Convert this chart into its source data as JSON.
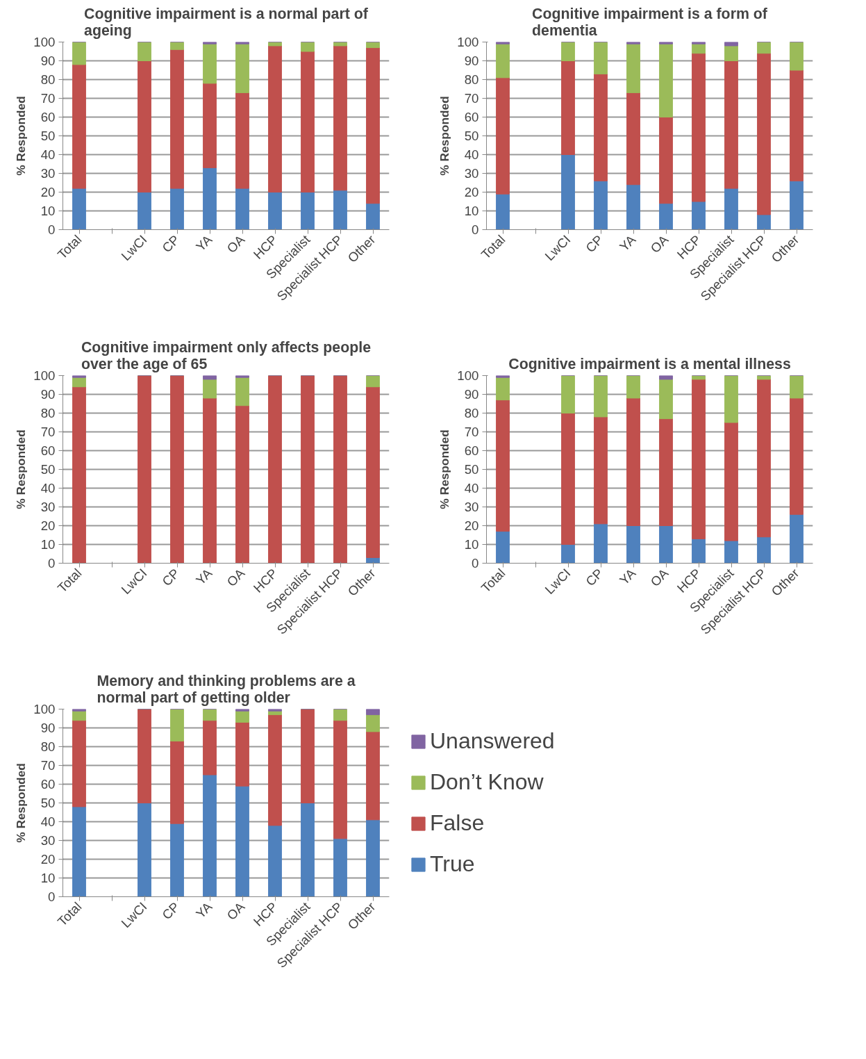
{
  "chart_data": [
    {
      "type": "bar",
      "stacked": true,
      "title": "Cognitive impairment is a normal part of ageing",
      "ylabel": "% Responded",
      "categories": [
        "Total",
        null,
        "LwCI",
        "CP",
        "YA",
        "OA",
        "HCP",
        "Specialist",
        "Specialist HCP",
        "Other"
      ],
      "ylim": [
        0,
        100
      ],
      "yticks": [
        0,
        10,
        20,
        30,
        40,
        50,
        60,
        70,
        80,
        90,
        100
      ],
      "grid": "y",
      "legend": false,
      "series": [
        {
          "color": "#4f81bd",
          "values": [
            22,
            null,
            20,
            22,
            33,
            22,
            20,
            20,
            21,
            14
          ]
        },
        {
          "color": "#c0504d",
          "values": [
            66,
            null,
            70,
            74,
            45,
            51,
            78,
            75,
            77,
            83
          ]
        },
        {
          "color": "#9bbb59",
          "values": [
            12,
            null,
            10,
            4,
            21,
            26,
            2,
            5,
            2,
            3
          ]
        },
        {
          "color": "#8064a2",
          "values": [
            0,
            null,
            0,
            0,
            1,
            1,
            0,
            0,
            0,
            0
          ]
        }
      ]
    },
    {
      "type": "bar",
      "stacked": true,
      "title": "Cognitive impairment is a form of dementia",
      "ylabel": "% Responded",
      "categories": [
        "Total",
        null,
        "LwCI",
        "CP",
        "YA",
        "OA",
        "HCP",
        "Specialist",
        "Specialist HCP",
        "Other"
      ],
      "ylim": [
        0,
        100
      ],
      "yticks": [
        0,
        10,
        20,
        30,
        40,
        50,
        60,
        70,
        80,
        90,
        100
      ],
      "grid": "y",
      "legend": false,
      "series": [
        {
          "color": "#4f81bd",
          "values": [
            19,
            null,
            40,
            26,
            24,
            14,
            15,
            22,
            8,
            26
          ]
        },
        {
          "color": "#c0504d",
          "values": [
            62,
            null,
            50,
            57,
            49,
            46,
            79,
            68,
            86,
            59
          ]
        },
        {
          "color": "#9bbb59",
          "values": [
            18,
            null,
            10,
            17,
            26,
            39,
            5,
            8,
            6,
            15
          ]
        },
        {
          "color": "#8064a2",
          "values": [
            1,
            null,
            0,
            0,
            1,
            1,
            1,
            2,
            0,
            0
          ]
        }
      ]
    },
    {
      "type": "bar",
      "stacked": true,
      "title": "Cognitive impairment only affects people over the age of 65",
      "ylabel": "% Responded",
      "categories": [
        "Total",
        null,
        "LwCI",
        "CP",
        "YA",
        "OA",
        "HCP",
        "Specialist",
        "Specialist HCP",
        "Other"
      ],
      "ylim": [
        0,
        100
      ],
      "yticks": [
        0,
        10,
        20,
        30,
        40,
        50,
        60,
        70,
        80,
        90,
        100
      ],
      "grid": "y",
      "legend": false,
      "series": [
        {
          "color": "#4f81bd",
          "values": [
            0,
            null,
            0,
            0,
            0,
            0,
            0,
            0,
            0,
            3
          ]
        },
        {
          "color": "#c0504d",
          "values": [
            94,
            null,
            100,
            100,
            88,
            84,
            100,
            100,
            100,
            91
          ]
        },
        {
          "color": "#9bbb59",
          "values": [
            5,
            null,
            0,
            0,
            10,
            15,
            0,
            0,
            0,
            6
          ]
        },
        {
          "color": "#8064a2",
          "values": [
            1,
            null,
            0,
            0,
            2,
            1,
            0,
            0,
            0,
            0
          ]
        }
      ]
    },
    {
      "type": "bar",
      "stacked": true,
      "title": "Cognitive impairment is a mental illness",
      "ylabel": "% Responded",
      "categories": [
        "Total",
        null,
        "LwCI",
        "CP",
        "YA",
        "OA",
        "HCP",
        "Specialist",
        "Specialist HCP",
        "Other"
      ],
      "ylim": [
        0,
        100
      ],
      "yticks": [
        0,
        10,
        20,
        30,
        40,
        50,
        60,
        70,
        80,
        90,
        100
      ],
      "grid": "y",
      "legend": false,
      "series": [
        {
          "color": "#4f81bd",
          "values": [
            17,
            null,
            10,
            21,
            20,
            20,
            13,
            12,
            14,
            26
          ]
        },
        {
          "color": "#c0504d",
          "values": [
            70,
            null,
            70,
            57,
            68,
            57,
            85,
            63,
            84,
            62
          ]
        },
        {
          "color": "#9bbb59",
          "values": [
            12,
            null,
            20,
            22,
            12,
            21,
            2,
            25,
            2,
            12
          ]
        },
        {
          "color": "#8064a2",
          "values": [
            1,
            null,
            0,
            0,
            0,
            2,
            0,
            0,
            0,
            0
          ]
        }
      ]
    },
    {
      "type": "bar",
      "stacked": true,
      "title": "Memory and thinking problems are a normal part of getting older",
      "ylabel": "% Responded",
      "categories": [
        "Total",
        null,
        "LwCI",
        "CP",
        "YA",
        "OA",
        "HCP",
        "Specialist",
        "Specialist HCP",
        "Other"
      ],
      "ylim": [
        0,
        100
      ],
      "yticks": [
        0,
        10,
        20,
        30,
        40,
        50,
        60,
        70,
        80,
        90,
        100
      ],
      "grid": "y",
      "legend": "right",
      "series": [
        {
          "name": "True",
          "color": "#4f81bd",
          "values": [
            48,
            null,
            50,
            39,
            65,
            59,
            38,
            50,
            31,
            41
          ]
        },
        {
          "name": "False",
          "color": "#c0504d",
          "values": [
            46,
            null,
            50,
            44,
            29,
            34,
            59,
            50,
            63,
            47
          ]
        },
        {
          "name": "Don’t Know",
          "color": "#9bbb59",
          "values": [
            5,
            null,
            0,
            17,
            6,
            6,
            2,
            0,
            6,
            9
          ]
        },
        {
          "name": "Unanswered",
          "color": "#8064a2",
          "values": [
            1,
            null,
            0,
            0,
            0,
            1,
            1,
            0,
            0,
            3
          ]
        }
      ]
    }
  ]
}
